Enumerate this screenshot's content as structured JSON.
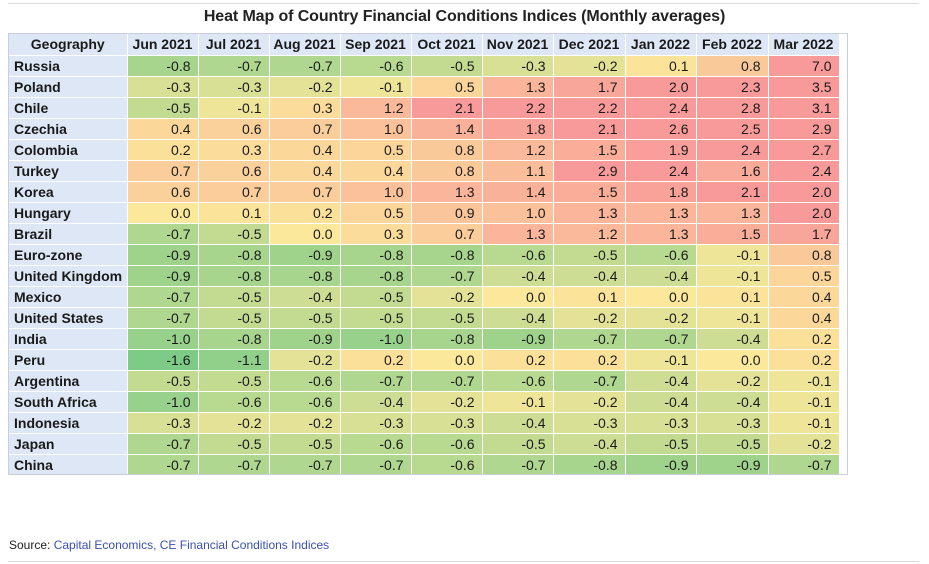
{
  "title": "Heat Map of Country Financial Conditions Indices (Monthly averages)",
  "source": {
    "prefix": "Source: ",
    "link_text": "Capital Economics, CE Financial Conditions Indices"
  },
  "colors": {
    "header_bg": "#dde7f6",
    "low": "#7dcb87",
    "mid": "#fbe89a",
    "high": "#f99a9a"
  },
  "chart_data": {
    "type": "heatmap",
    "title": "Heat Map of Country Financial Conditions Indices (Monthly averages)",
    "row_header": "Geography",
    "columns": [
      "Jun 2021",
      "Jul 2021",
      "Aug 2021",
      "Sep 2021",
      "Oct 2021",
      "Nov 2021",
      "Dec 2021",
      "Jan 2022",
      "Feb 2022",
      "Mar 2022"
    ],
    "rows": [
      {
        "name": "Russia",
        "values": [
          -0.8,
          -0.7,
          -0.7,
          -0.6,
          -0.5,
          -0.3,
          -0.2,
          0.1,
          0.8,
          7.0
        ]
      },
      {
        "name": "Poland",
        "values": [
          -0.3,
          -0.3,
          -0.2,
          -0.1,
          0.5,
          1.3,
          1.7,
          2.0,
          2.3,
          3.5
        ]
      },
      {
        "name": "Chile",
        "values": [
          -0.5,
          -0.1,
          0.3,
          1.2,
          2.1,
          2.2,
          2.2,
          2.4,
          2.8,
          3.1
        ]
      },
      {
        "name": "Czechia",
        "values": [
          0.4,
          0.6,
          0.7,
          1.0,
          1.4,
          1.8,
          2.1,
          2.6,
          2.5,
          2.9
        ]
      },
      {
        "name": "Colombia",
        "values": [
          0.2,
          0.3,
          0.4,
          0.5,
          0.8,
          1.2,
          1.5,
          1.9,
          2.4,
          2.7
        ]
      },
      {
        "name": "Turkey",
        "values": [
          0.7,
          0.6,
          0.4,
          0.4,
          0.8,
          1.1,
          2.9,
          2.4,
          1.6,
          2.4
        ]
      },
      {
        "name": "Korea",
        "values": [
          0.6,
          0.7,
          0.7,
          1.0,
          1.3,
          1.4,
          1.5,
          1.8,
          2.1,
          2.0
        ]
      },
      {
        "name": "Hungary",
        "values": [
          0.0,
          0.1,
          0.2,
          0.5,
          0.9,
          1.0,
          1.3,
          1.3,
          1.3,
          2.0
        ]
      },
      {
        "name": "Brazil",
        "values": [
          -0.7,
          -0.5,
          0.0,
          0.3,
          0.7,
          1.3,
          1.2,
          1.3,
          1.5,
          1.7
        ]
      },
      {
        "name": "Euro-zone",
        "values": [
          -0.9,
          -0.8,
          -0.9,
          -0.8,
          -0.8,
          -0.6,
          -0.5,
          -0.6,
          -0.1,
          0.8
        ]
      },
      {
        "name": "United Kingdom",
        "values": [
          -0.9,
          -0.8,
          -0.8,
          -0.8,
          -0.7,
          -0.4,
          -0.4,
          -0.4,
          -0.1,
          0.5
        ]
      },
      {
        "name": "Mexico",
        "values": [
          -0.7,
          -0.5,
          -0.4,
          -0.5,
          -0.2,
          0.0,
          0.1,
          0.0,
          0.1,
          0.4
        ]
      },
      {
        "name": "United States",
        "values": [
          -0.7,
          -0.5,
          -0.5,
          -0.5,
          -0.5,
          -0.4,
          -0.2,
          -0.2,
          -0.1,
          0.4
        ]
      },
      {
        "name": "India",
        "values": [
          -1.0,
          -0.8,
          -0.9,
          -1.0,
          -0.8,
          -0.9,
          -0.7,
          -0.7,
          -0.4,
          0.2
        ]
      },
      {
        "name": "Peru",
        "values": [
          -1.6,
          -1.1,
          -0.2,
          0.2,
          0.0,
          0.2,
          0.2,
          -0.1,
          0.0,
          0.2
        ]
      },
      {
        "name": "Argentina",
        "values": [
          -0.5,
          -0.5,
          -0.6,
          -0.7,
          -0.7,
          -0.6,
          -0.7,
          -0.4,
          -0.2,
          -0.1
        ]
      },
      {
        "name": "South Africa",
        "values": [
          -1.0,
          -0.6,
          -0.6,
          -0.4,
          -0.2,
          -0.1,
          -0.2,
          -0.4,
          -0.4,
          -0.1
        ]
      },
      {
        "name": "Indonesia",
        "values": [
          -0.3,
          -0.2,
          -0.2,
          -0.3,
          -0.3,
          -0.4,
          -0.3,
          -0.3,
          -0.3,
          -0.1
        ]
      },
      {
        "name": "Japan",
        "values": [
          -0.7,
          -0.5,
          -0.5,
          -0.6,
          -0.6,
          -0.5,
          -0.4,
          -0.5,
          -0.5,
          -0.2
        ]
      },
      {
        "name": "China",
        "values": [
          -0.7,
          -0.7,
          -0.7,
          -0.7,
          -0.6,
          -0.7,
          -0.8,
          -0.9,
          -0.9,
          -0.7
        ]
      }
    ]
  }
}
